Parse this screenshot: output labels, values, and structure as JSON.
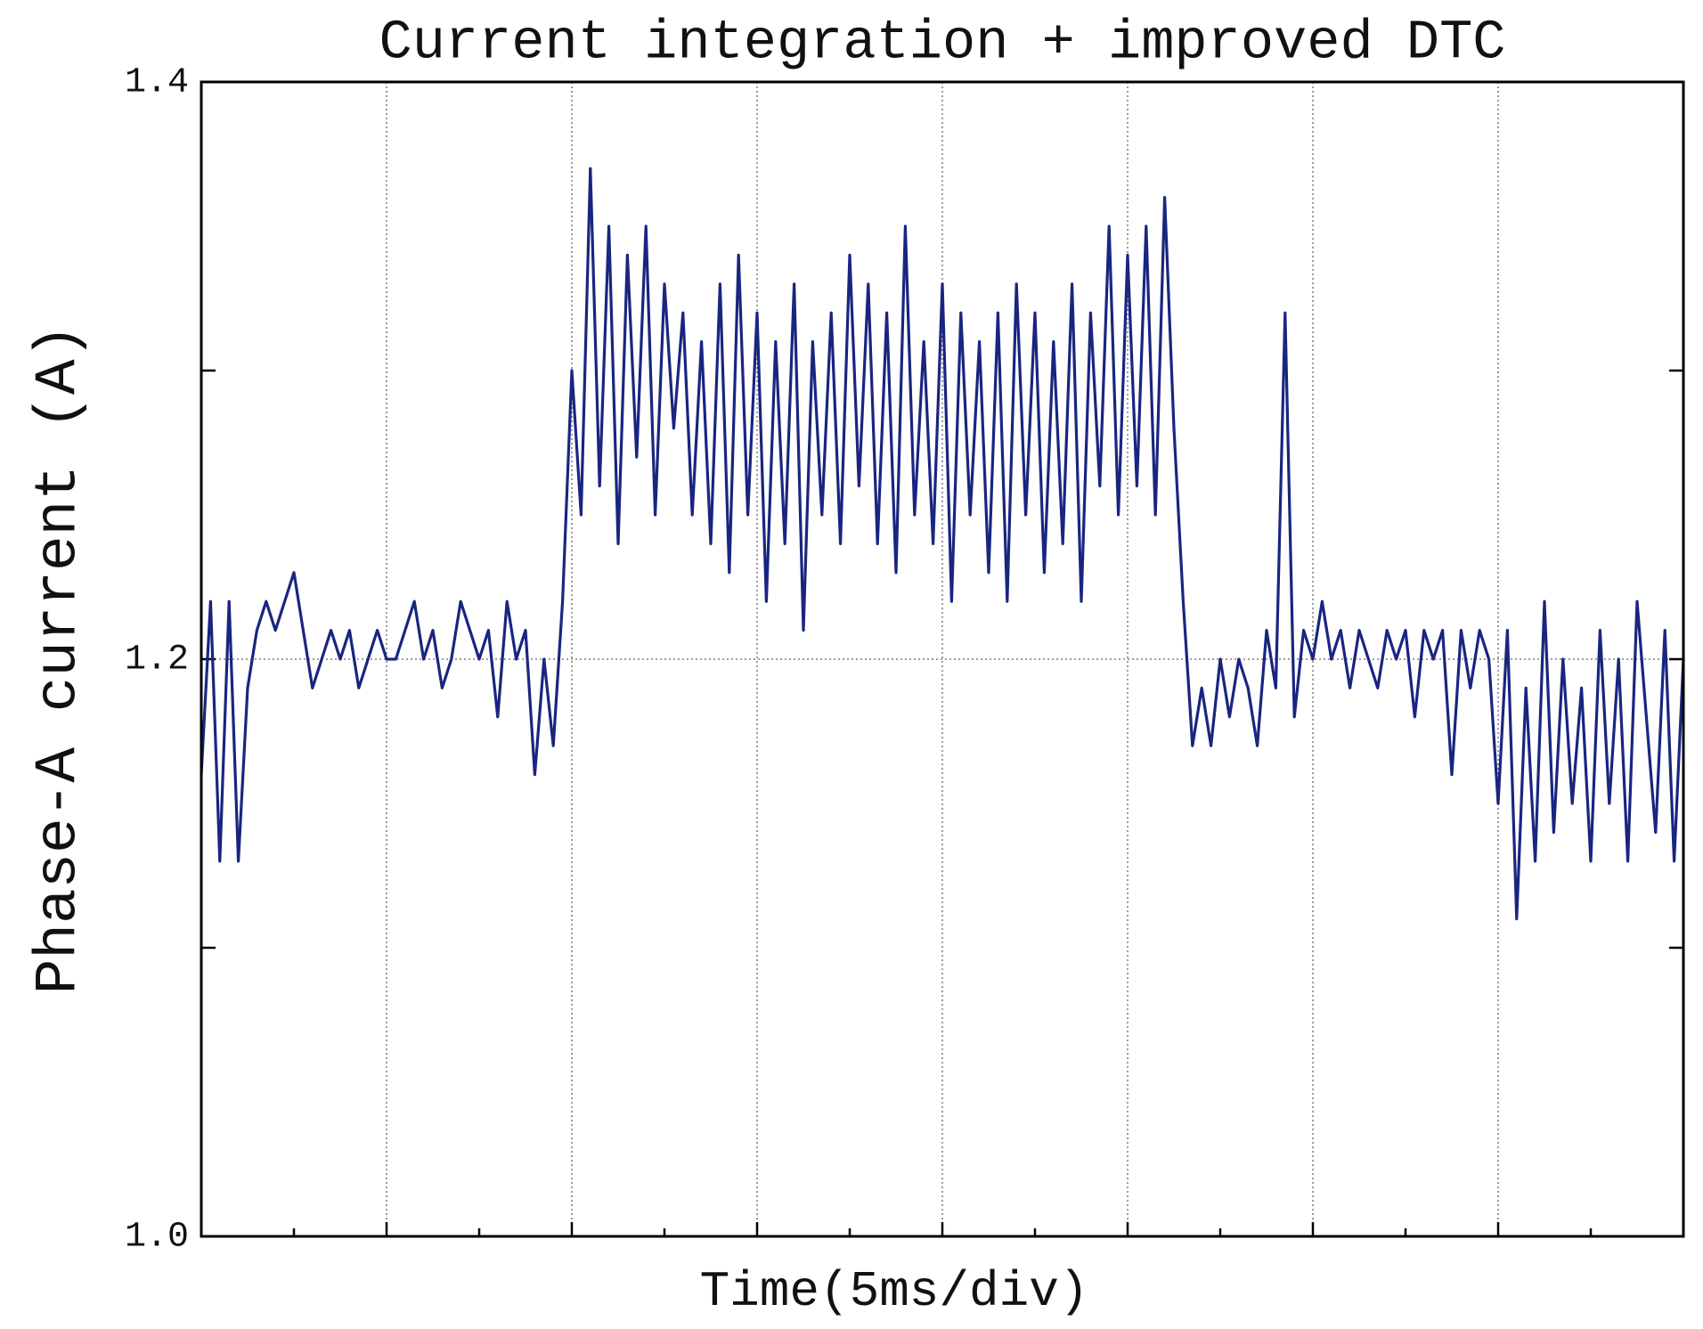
{
  "chart_data": {
    "type": "line",
    "title": "Current integration + improved DTC",
    "x_label": "Time(5ms/div)",
    "y_label": "Phase-A current (A)",
    "xlim": [
      0,
      8
    ],
    "xticks": [
      0,
      1,
      2,
      3,
      4,
      5,
      6,
      7,
      8
    ],
    "xminor_ticks": [
      0.5,
      1.5,
      2.5,
      3.5,
      4.5,
      5.5,
      6.5,
      7.5
    ],
    "ylim": [
      1.0,
      1.4
    ],
    "yticks": [
      {
        "value": 1.0,
        "label": "1.0"
      },
      1.2,
      1.4
    ],
    "yminor_ticks": [
      1.1,
      1.3
    ],
    "grid": true,
    "x": [
      0,
      0.05,
      0.1,
      0.15,
      0.2,
      0.25,
      0.3,
      0.35,
      0.4,
      0.45,
      0.5,
      0.55,
      0.6,
      0.65,
      0.7,
      0.75,
      0.8,
      0.85,
      0.9,
      0.95,
      1,
      1.05,
      1.1,
      1.15,
      1.2,
      1.25,
      1.3,
      1.35,
      1.4,
      1.45,
      1.5,
      1.55,
      1.6,
      1.65,
      1.7,
      1.75,
      1.8,
      1.85,
      1.9,
      1.95,
      2,
      2.05,
      2.1,
      2.15,
      2.2,
      2.25,
      2.3,
      2.35,
      2.4,
      2.45,
      2.5,
      2.55,
      2.6,
      2.65,
      2.7,
      2.75,
      2.8,
      2.85,
      2.9,
      2.95,
      3,
      3.05,
      3.1,
      3.15,
      3.2,
      3.25,
      3.3,
      3.35,
      3.4,
      3.45,
      3.5,
      3.55,
      3.6,
      3.65,
      3.7,
      3.75,
      3.8,
      3.85,
      3.9,
      3.95,
      4,
      4.05,
      4.1,
      4.15,
      4.2,
      4.25,
      4.3,
      4.35,
      4.4,
      4.45,
      4.5,
      4.55,
      4.6,
      4.65,
      4.7,
      4.75,
      4.8,
      4.85,
      4.9,
      4.95,
      5,
      5.05,
      5.1,
      5.15,
      5.2,
      5.25,
      5.3,
      5.35,
      5.4,
      5.45,
      5.5,
      5.55,
      5.6,
      5.65,
      5.7,
      5.75,
      5.8,
      5.85,
      5.9,
      5.95,
      6,
      6.05,
      6.1,
      6.15,
      6.2,
      6.25,
      6.3,
      6.35,
      6.4,
      6.45,
      6.5,
      6.55,
      6.6,
      6.65,
      6.7,
      6.75,
      6.8,
      6.85,
      6.9,
      6.95,
      7,
      7.05,
      7.1,
      7.15,
      7.2,
      7.25,
      7.3,
      7.35,
      7.4,
      7.45,
      7.5,
      7.55,
      7.6,
      7.65,
      7.7,
      7.75,
      7.8,
      7.85,
      7.9,
      7.95,
      8
    ],
    "series": [
      {
        "color": "#1a2580",
        "values": [
          1.16,
          1.22,
          1.13,
          1.22,
          1.13,
          1.19,
          1.21,
          1.22,
          1.21,
          1.22,
          1.23,
          1.21,
          1.19,
          1.2,
          1.21,
          1.2,
          1.21,
          1.19,
          1.2,
          1.21,
          1.2,
          1.2,
          1.21,
          1.22,
          1.2,
          1.21,
          1.19,
          1.2,
          1.22,
          1.21,
          1.2,
          1.21,
          1.18,
          1.22,
          1.2,
          1.21,
          1.16,
          1.2,
          1.17,
          1.22,
          1.3,
          1.25,
          1.37,
          1.26,
          1.35,
          1.24,
          1.34,
          1.27,
          1.35,
          1.25,
          1.33,
          1.28,
          1.32,
          1.25,
          1.31,
          1.24,
          1.33,
          1.23,
          1.34,
          1.25,
          1.32,
          1.22,
          1.31,
          1.24,
          1.33,
          1.21,
          1.31,
          1.25,
          1.32,
          1.24,
          1.34,
          1.26,
          1.33,
          1.24,
          1.32,
          1.23,
          1.35,
          1.25,
          1.31,
          1.24,
          1.33,
          1.22,
          1.32,
          1.25,
          1.31,
          1.23,
          1.32,
          1.22,
          1.33,
          1.25,
          1.32,
          1.23,
          1.31,
          1.24,
          1.33,
          1.22,
          1.32,
          1.26,
          1.35,
          1.25,
          1.34,
          1.26,
          1.35,
          1.25,
          1.36,
          1.28,
          1.22,
          1.17,
          1.19,
          1.17,
          1.2,
          1.18,
          1.2,
          1.19,
          1.17,
          1.21,
          1.19,
          1.32,
          1.18,
          1.21,
          1.2,
          1.22,
          1.2,
          1.21,
          1.19,
          1.21,
          1.2,
          1.19,
          1.21,
          1.2,
          1.21,
          1.18,
          1.21,
          1.2,
          1.21,
          1.16,
          1.21,
          1.19,
          1.21,
          1.2,
          1.15,
          1.21,
          1.11,
          1.19,
          1.13,
          1.22,
          1.14,
          1.2,
          1.15,
          1.19,
          1.13,
          1.21,
          1.15,
          1.2,
          1.13,
          1.22,
          1.18,
          1.14,
          1.21,
          1.13,
          1.2
        ]
      }
    ]
  }
}
